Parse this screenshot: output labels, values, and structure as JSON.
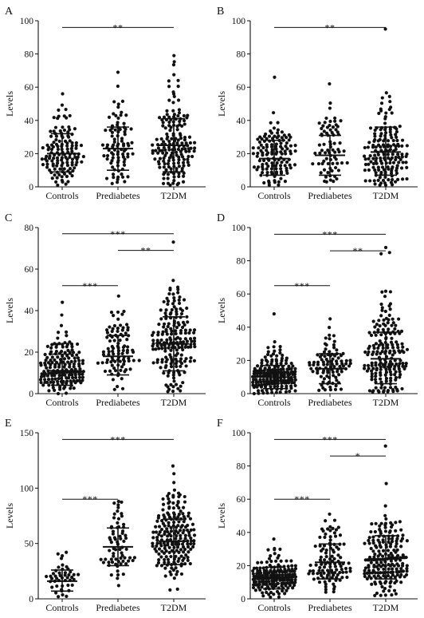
{
  "chart_data": [
    {
      "type": "scatter",
      "panel": "A",
      "ylabel": "Levels",
      "ylim": [
        0,
        100
      ],
      "yticks": [
        0,
        20,
        40,
        60,
        80,
        100
      ],
      "categories": [
        "Controls",
        "Prediabetes",
        "T2DM"
      ],
      "groups": [
        {
          "name": "Controls",
          "mean": 20,
          "sd_low": 9,
          "sd_high": 32,
          "n": 130,
          "min": 1,
          "max": 56
        },
        {
          "name": "Prediabetes",
          "mean": 23,
          "sd_low": 10,
          "sd_high": 36,
          "n": 90,
          "min": 2,
          "max": 69
        },
        {
          "name": "T2DM",
          "mean": 25,
          "sd_low": 9,
          "sd_high": 41,
          "n": 170,
          "min": 1,
          "max": 79
        }
      ],
      "significance": [
        {
          "from": 0,
          "to": 2,
          "label": "**",
          "y": 96
        }
      ]
    },
    {
      "type": "scatter",
      "panel": "B",
      "ylabel": "Levels",
      "ylim": [
        0,
        100
      ],
      "yticks": [
        0,
        20,
        40,
        60,
        80,
        100
      ],
      "categories": [
        "Controls",
        "Prediabetes",
        "T2DM"
      ],
      "groups": [
        {
          "name": "Controls",
          "mean": 17,
          "sd_low": 7,
          "sd_high": 28,
          "n": 130,
          "min": 1,
          "max": 66
        },
        {
          "name": "Prediabetes",
          "mean": 19,
          "sd_low": 7,
          "sd_high": 31,
          "n": 75,
          "min": 3,
          "max": 62
        },
        {
          "name": "T2DM",
          "mean": 21,
          "sd_low": 7,
          "sd_high": 36,
          "n": 165,
          "min": 1,
          "max": 95
        }
      ],
      "significance": [
        {
          "from": 0,
          "to": 2,
          "label": "**",
          "y": 96
        }
      ]
    },
    {
      "type": "scatter",
      "panel": "C",
      "ylabel": "Levels",
      "ylim": [
        0,
        80
      ],
      "yticks": [
        0,
        20,
        40,
        60,
        80
      ],
      "categories": [
        "Controls",
        "Prediabetes",
        "T2DM"
      ],
      "groups": [
        {
          "name": "Controls",
          "mean": 11,
          "sd_low": 4,
          "sd_high": 19,
          "n": 170,
          "min": 0,
          "max": 44
        },
        {
          "name": "Prediabetes",
          "mean": 18,
          "sd_low": 9,
          "sd_high": 28,
          "n": 95,
          "min": 2,
          "max": 47
        },
        {
          "name": "T2DM",
          "mean": 24,
          "sd_low": 11,
          "sd_high": 37,
          "n": 190,
          "min": 1,
          "max": 73
        }
      ],
      "significance": [
        {
          "from": 0,
          "to": 2,
          "label": "***",
          "y": 77
        },
        {
          "from": 1,
          "to": 2,
          "label": "**",
          "y": 69
        },
        {
          "from": 0,
          "to": 1,
          "label": "***",
          "y": 52
        }
      ]
    },
    {
      "type": "scatter",
      "panel": "D",
      "ylabel": "Levels",
      "ylim": [
        0,
        100
      ],
      "yticks": [
        0,
        20,
        40,
        60,
        80,
        100
      ],
      "categories": [
        "Controls",
        "Prediabetes",
        "T2DM"
      ],
      "groups": [
        {
          "name": "Controls",
          "mean": 10,
          "sd_low": 3,
          "sd_high": 17,
          "n": 175,
          "min": 0,
          "max": 48
        },
        {
          "name": "Prediabetes",
          "mean": 15,
          "sd_low": 6,
          "sd_high": 24,
          "n": 95,
          "min": 2,
          "max": 45
        },
        {
          "name": "T2DM",
          "mean": 21,
          "sd_low": 6,
          "sd_high": 37,
          "n": 190,
          "min": 1,
          "max": 88
        }
      ],
      "significance": [
        {
          "from": 0,
          "to": 2,
          "label": "***",
          "y": 96
        },
        {
          "from": 1,
          "to": 2,
          "label": "**",
          "y": 86
        },
        {
          "from": 0,
          "to": 1,
          "label": "***",
          "y": 65
        }
      ]
    },
    {
      "type": "scatter",
      "panel": "E",
      "ylabel": "Levels",
      "ylim": [
        0,
        150
      ],
      "yticks": [
        0,
        50,
        100,
        150
      ],
      "categories": [
        "Controls",
        "Prediabetes",
        "T2DM"
      ],
      "groups": [
        {
          "name": "Controls",
          "mean": 16,
          "sd_low": 7,
          "sd_high": 26,
          "n": 45,
          "min": 2,
          "max": 42
        },
        {
          "name": "Prediabetes",
          "mean": 47,
          "sd_low": 30,
          "sd_high": 64,
          "n": 70,
          "min": 12,
          "max": 88
        },
        {
          "name": "T2DM",
          "mean": 52,
          "sd_low": 31,
          "sd_high": 72,
          "n": 200,
          "min": 8,
          "max": 120
        }
      ],
      "significance": [
        {
          "from": 0,
          "to": 2,
          "label": "***",
          "y": 144
        },
        {
          "from": 0,
          "to": 1,
          "label": "***",
          "y": 90
        }
      ]
    },
    {
      "type": "scatter",
      "panel": "F",
      "ylabel": "Levels",
      "ylim": [
        0,
        100
      ],
      "yticks": [
        0,
        20,
        40,
        60,
        80,
        100
      ],
      "categories": [
        "Controls",
        "Prediabetes",
        "T2DM"
      ],
      "groups": [
        {
          "name": "Controls",
          "mean": 13,
          "sd_low": 6,
          "sd_high": 19,
          "n": 170,
          "min": 1,
          "max": 36
        },
        {
          "name": "Prediabetes",
          "mean": 22,
          "sd_low": 12,
          "sd_high": 33,
          "n": 110,
          "min": 4,
          "max": 51
        },
        {
          "name": "T2DM",
          "mean": 24,
          "sd_low": 12,
          "sd_high": 38,
          "n": 200,
          "min": 2,
          "max": 92
        }
      ],
      "significance": [
        {
          "from": 0,
          "to": 2,
          "label": "***",
          "y": 96
        },
        {
          "from": 1,
          "to": 2,
          "label": "*",
          "y": 86
        },
        {
          "from": 0,
          "to": 1,
          "label": "***",
          "y": 60
        }
      ]
    }
  ]
}
